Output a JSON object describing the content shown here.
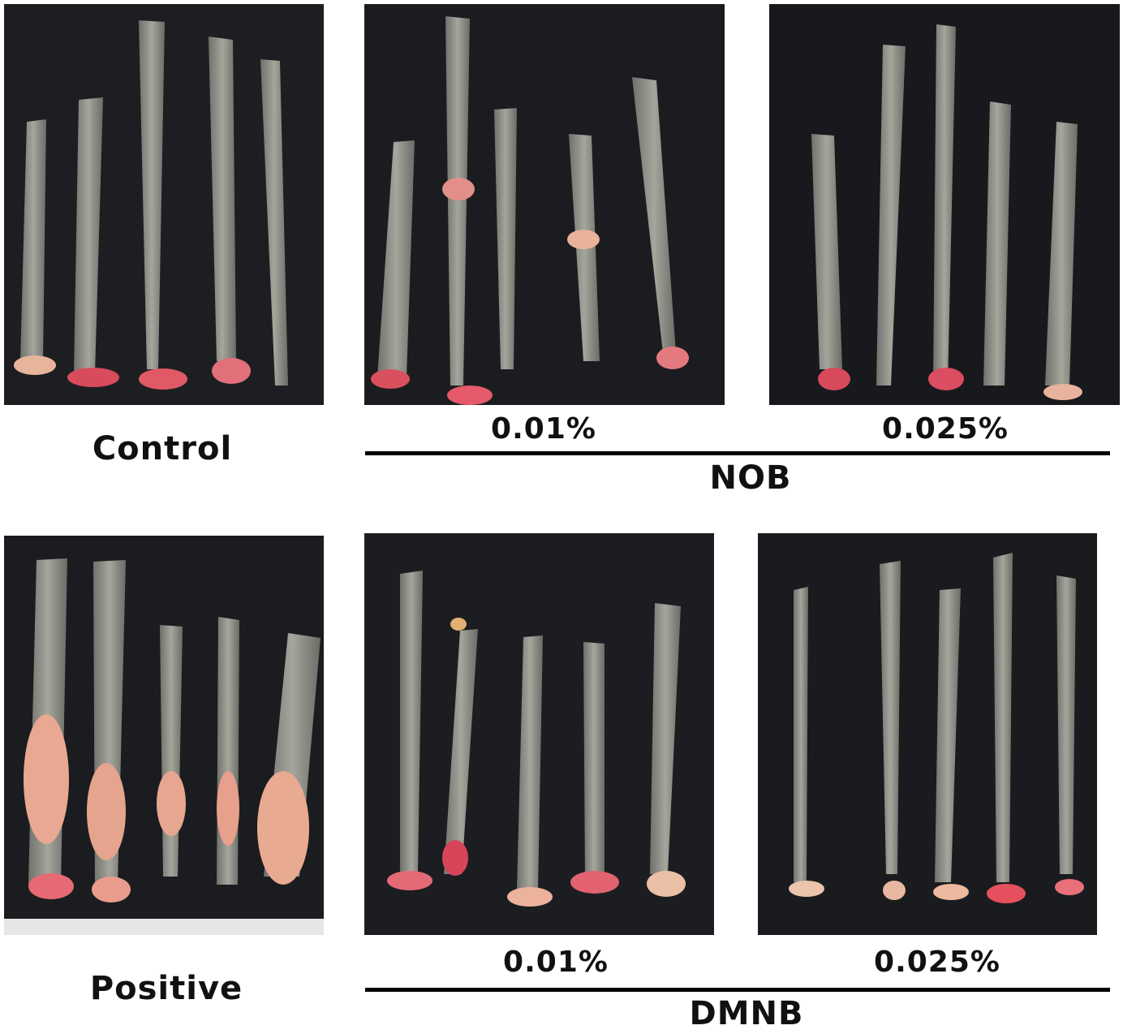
{
  "top_row": {
    "control_label": "Control",
    "nob": {
      "low_label": "0.01%",
      "high_label": "0.025%",
      "group_label": "NOB"
    }
  },
  "bottom_row": {
    "positive_label": "Positive",
    "dmnb": {
      "low_label": "0.01%",
      "high_label": "0.025%",
      "group_label": "DMNB"
    }
  },
  "colors": {
    "background": "#1b1c1f",
    "tissue": "#8f9088",
    "red_tissue": "#d2455a",
    "tumor": "#e9a892"
  }
}
